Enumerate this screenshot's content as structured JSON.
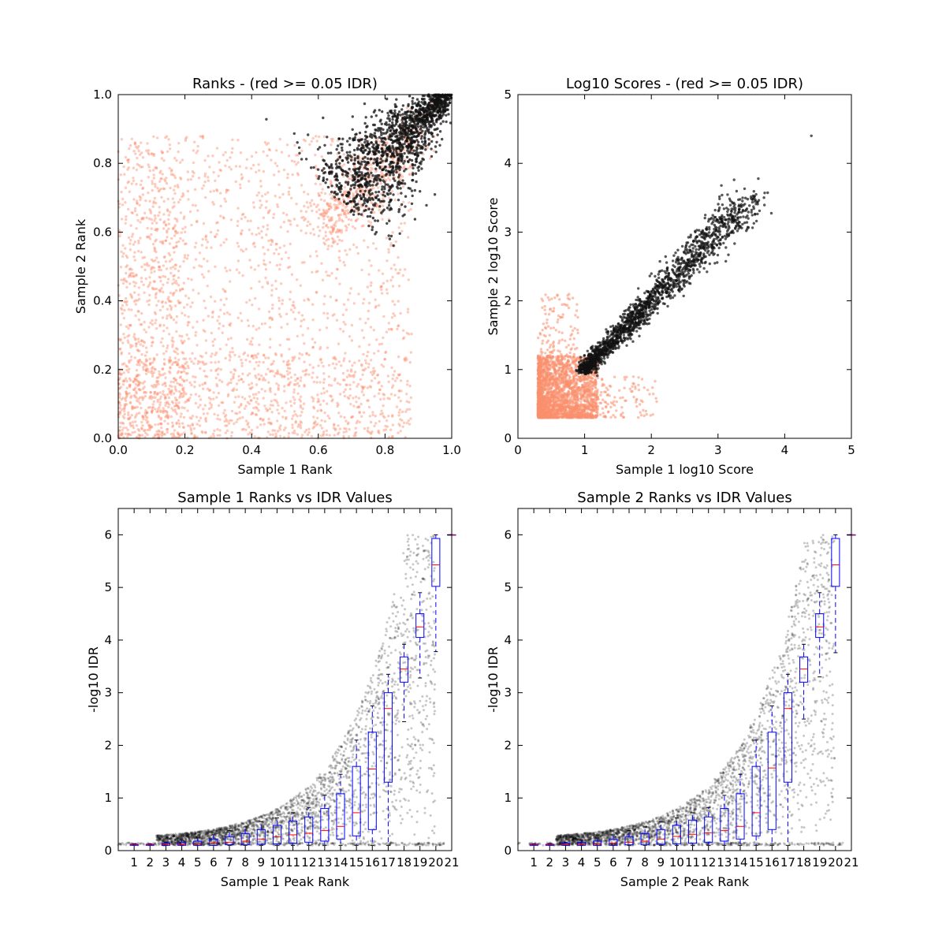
{
  "chart_data": [
    {
      "type": "scatter",
      "title": "Ranks - (red >= 0.05 IDR)",
      "xlabel": "Sample 1 Rank",
      "ylabel": "Sample 2 Rank",
      "xlim": [
        0,
        1
      ],
      "ylim": [
        0,
        1
      ],
      "xticks": [
        "0.0",
        "0.2",
        "0.4",
        "0.6",
        "0.8",
        "1.0"
      ],
      "yticks": [
        "0.0",
        "0.2",
        "0.4",
        "0.6",
        "0.8",
        "1.0"
      ],
      "colors": {
        "fail": "#fa8f6e",
        "pass": "#111111"
      },
      "series": [
        {
          "group": "fail",
          "region": "broad field of points covering ranks 0.0-0.87 on both axes, dense near the axes"
        },
        {
          "group": "pass",
          "region": "dense band from about (0.66, 0.66) to (1.0, 1.0) along the diagonal"
        }
      ]
    },
    {
      "type": "scatter",
      "title": "Log10 Scores - (red >= 0.05 IDR)",
      "xlabel": "Sample 1 log10 Score",
      "ylabel": "Sample 2 log10 Score",
      "xlim": [
        0,
        5
      ],
      "ylim": [
        0,
        5
      ],
      "xticks": [
        "0",
        "1",
        "2",
        "3",
        "4",
        "5"
      ],
      "yticks": [
        "0",
        "1",
        "2",
        "3",
        "4",
        "5"
      ],
      "colors": {
        "fail": "#fa8f6e",
        "pass": "#111111"
      },
      "series": [
        {
          "group": "fail",
          "region": "dense cluster from about 0.3 to 1.2 on both axes"
        },
        {
          "group": "pass",
          "region": "diagonal band from about (1, 1) up to (3.6, 3.6), outlier near (4.4, 4.4)"
        }
      ]
    },
    {
      "type": "box",
      "title": "Sample 1 Ranks vs IDR Values",
      "xlabel": "Sample 1 Peak Rank",
      "ylabel": "-log10 IDR",
      "xlim": [
        0,
        21
      ],
      "ylim": [
        0,
        6.5
      ],
      "categories": [
        "1",
        "2",
        "3",
        "4",
        "5",
        "6",
        "7",
        "8",
        "9",
        "10",
        "11",
        "12",
        "13",
        "14",
        "15",
        "16",
        "17",
        "18",
        "19",
        "20",
        "21"
      ],
      "yticks": [
        "0",
        "1",
        "2",
        "3",
        "4",
        "5",
        "6"
      ],
      "colors": {
        "box": "#0000ff",
        "median": "#ff0000",
        "points": "#000000"
      },
      "boxes": [
        {
          "q1": 0.1,
          "median": 0.11,
          "q3": 0.12,
          "whislo": 0.1,
          "whishi": 0.13
        },
        {
          "q1": 0.1,
          "median": 0.11,
          "q3": 0.12,
          "whislo": 0.1,
          "whishi": 0.13
        },
        {
          "q1": 0.1,
          "median": 0.12,
          "q3": 0.14,
          "whislo": 0.1,
          "whishi": 0.16
        },
        {
          "q1": 0.1,
          "median": 0.12,
          "q3": 0.16,
          "whislo": 0.1,
          "whishi": 0.2
        },
        {
          "q1": 0.1,
          "median": 0.13,
          "q3": 0.18,
          "whislo": 0.1,
          "whishi": 0.24
        },
        {
          "q1": 0.1,
          "median": 0.14,
          "q3": 0.22,
          "whislo": 0.1,
          "whishi": 0.3
        },
        {
          "q1": 0.11,
          "median": 0.16,
          "q3": 0.26,
          "whislo": 0.1,
          "whishi": 0.38
        },
        {
          "q1": 0.11,
          "median": 0.18,
          "q3": 0.32,
          "whislo": 0.1,
          "whishi": 0.45
        },
        {
          "q1": 0.12,
          "median": 0.22,
          "q3": 0.4,
          "whislo": 0.1,
          "whishi": 0.55
        },
        {
          "q1": 0.13,
          "median": 0.26,
          "q3": 0.48,
          "whislo": 0.1,
          "whishi": 0.62
        },
        {
          "q1": 0.14,
          "median": 0.3,
          "q3": 0.56,
          "whislo": 0.1,
          "whishi": 0.72
        },
        {
          "q1": 0.16,
          "median": 0.33,
          "q3": 0.64,
          "whislo": 0.1,
          "whishi": 0.82
        },
        {
          "q1": 0.18,
          "median": 0.38,
          "q3": 0.8,
          "whislo": 0.1,
          "whishi": 1.05
        },
        {
          "q1": 0.22,
          "median": 0.46,
          "q3": 1.08,
          "whislo": 0.1,
          "whishi": 1.45
        },
        {
          "q1": 0.28,
          "median": 0.72,
          "q3": 1.6,
          "whislo": 0.1,
          "whishi": 2.1
        },
        {
          "q1": 0.4,
          "median": 1.55,
          "q3": 2.25,
          "whislo": 0.1,
          "whishi": 2.75
        },
        {
          "q1": 1.3,
          "median": 2.7,
          "q3": 3.0,
          "whislo": 0.1,
          "whishi": 3.35
        },
        {
          "q1": 3.2,
          "median": 3.45,
          "q3": 3.68,
          "whislo": 2.45,
          "whishi": 3.92
        },
        {
          "q1": 4.05,
          "median": 4.25,
          "q3": 4.5,
          "whislo": 3.28,
          "whishi": 4.9
        },
        {
          "q1": 5.02,
          "median": 5.43,
          "q3": 5.93,
          "whislo": 3.78,
          "whishi": 6.0
        },
        {
          "q1": 6.0,
          "median": 6.0,
          "q3": 6.0,
          "whislo": 6.0,
          "whishi": 6.0
        }
      ]
    },
    {
      "type": "box",
      "title": "Sample 2 Ranks vs IDR Values",
      "xlabel": "Sample 2 Peak Rank",
      "ylabel": "-log10 IDR",
      "xlim": [
        0,
        21
      ],
      "ylim": [
        0,
        6.5
      ],
      "categories": [
        "1",
        "2",
        "3",
        "4",
        "5",
        "6",
        "7",
        "8",
        "9",
        "10",
        "11",
        "12",
        "13",
        "14",
        "15",
        "16",
        "17",
        "18",
        "19",
        "20",
        "21"
      ],
      "yticks": [
        "0",
        "1",
        "2",
        "3",
        "4",
        "5",
        "6"
      ],
      "colors": {
        "box": "#0000ff",
        "median": "#ff0000",
        "points": "#000000"
      },
      "boxes": [
        {
          "q1": 0.1,
          "median": 0.11,
          "q3": 0.12,
          "whislo": 0.1,
          "whishi": 0.13
        },
        {
          "q1": 0.1,
          "median": 0.11,
          "q3": 0.12,
          "whislo": 0.1,
          "whishi": 0.13
        },
        {
          "q1": 0.1,
          "median": 0.12,
          "q3": 0.14,
          "whislo": 0.1,
          "whishi": 0.16
        },
        {
          "q1": 0.1,
          "median": 0.12,
          "q3": 0.16,
          "whislo": 0.1,
          "whishi": 0.2
        },
        {
          "q1": 0.1,
          "median": 0.13,
          "q3": 0.18,
          "whislo": 0.1,
          "whishi": 0.24
        },
        {
          "q1": 0.1,
          "median": 0.14,
          "q3": 0.22,
          "whislo": 0.1,
          "whishi": 0.3
        },
        {
          "q1": 0.11,
          "median": 0.16,
          "q3": 0.26,
          "whislo": 0.1,
          "whishi": 0.38
        },
        {
          "q1": 0.11,
          "median": 0.18,
          "q3": 0.32,
          "whislo": 0.1,
          "whishi": 0.45
        },
        {
          "q1": 0.12,
          "median": 0.22,
          "q3": 0.4,
          "whislo": 0.1,
          "whishi": 0.55
        },
        {
          "q1": 0.13,
          "median": 0.27,
          "q3": 0.48,
          "whislo": 0.1,
          "whishi": 0.62
        },
        {
          "q1": 0.14,
          "median": 0.31,
          "q3": 0.58,
          "whislo": 0.1,
          "whishi": 0.72
        },
        {
          "q1": 0.16,
          "median": 0.34,
          "q3": 0.64,
          "whislo": 0.1,
          "whishi": 0.82
        },
        {
          "q1": 0.18,
          "median": 0.38,
          "q3": 0.8,
          "whislo": 0.1,
          "whishi": 1.05
        },
        {
          "q1": 0.22,
          "median": 0.46,
          "q3": 1.08,
          "whislo": 0.1,
          "whishi": 1.45
        },
        {
          "q1": 0.28,
          "median": 0.72,
          "q3": 1.6,
          "whislo": 0.1,
          "whishi": 2.1
        },
        {
          "q1": 0.4,
          "median": 1.57,
          "q3": 2.25,
          "whislo": 0.1,
          "whishi": 2.75
        },
        {
          "q1": 1.3,
          "median": 2.7,
          "q3": 3.0,
          "whislo": 0.1,
          "whishi": 3.35
        },
        {
          "q1": 3.2,
          "median": 3.45,
          "q3": 3.68,
          "whislo": 2.5,
          "whishi": 3.92
        },
        {
          "q1": 4.05,
          "median": 4.25,
          "q3": 4.5,
          "whislo": 3.3,
          "whishi": 4.9
        },
        {
          "q1": 5.02,
          "median": 5.43,
          "q3": 5.93,
          "whislo": 3.76,
          "whishi": 6.0
        },
        {
          "q1": 6.0,
          "median": 6.0,
          "q3": 6.0,
          "whislo": 6.0,
          "whishi": 6.0
        }
      ]
    }
  ]
}
